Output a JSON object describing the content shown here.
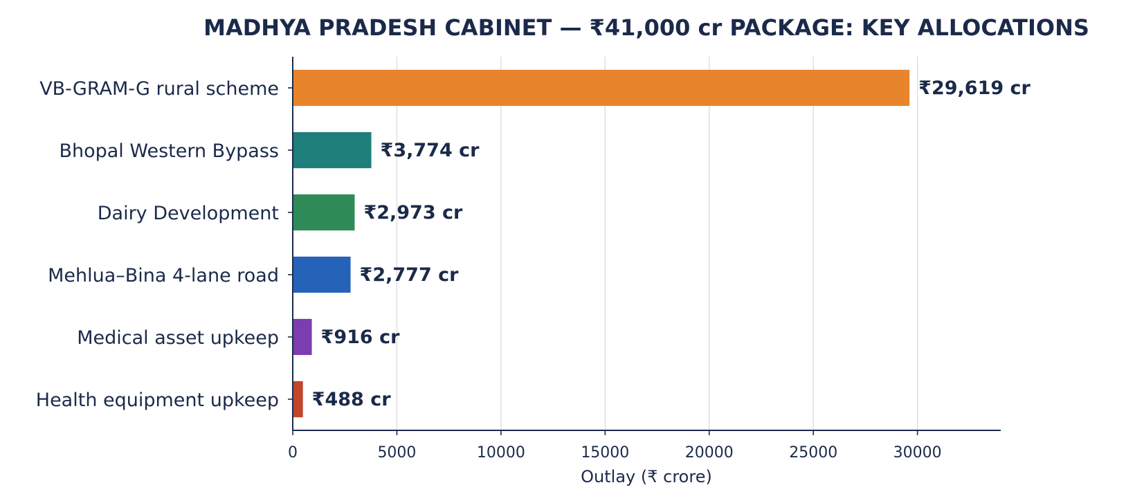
{
  "chart_data": {
    "type": "bar",
    "orientation": "horizontal",
    "title": "MADHYA PRADESH CABINET — ₹41,000 cr PACKAGE: KEY ALLOCATIONS",
    "xlabel": "Outlay (₹ crore)",
    "ylabel": "",
    "xlim": [
      0,
      34000
    ],
    "xticks": [
      0,
      5000,
      10000,
      15000,
      20000,
      25000,
      30000
    ],
    "grid": "vertical",
    "categories": [
      "VB-GRAM-G rural scheme",
      "Bhopal Western Bypass",
      "Dairy Development",
      "Mehlua–Bina 4-lane road",
      "Medical asset upkeep",
      "Health equipment upkeep"
    ],
    "values": [
      29619,
      3774,
      2973,
      2777,
      916,
      488
    ],
    "value_labels": [
      "₹29,619 cr",
      "₹3,774 cr",
      "₹2,973 cr",
      "₹2,777 cr",
      "₹916 cr",
      "₹488 cr"
    ],
    "colors": [
      "#e8842c",
      "#1f7f7a",
      "#2e8b57",
      "#2563b8",
      "#7b3db0",
      "#c0462e"
    ]
  }
}
